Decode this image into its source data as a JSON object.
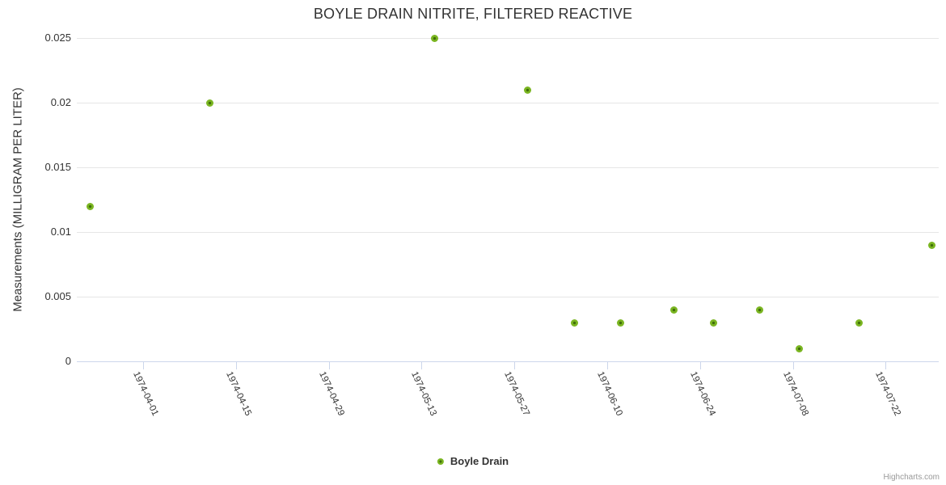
{
  "title": "BOYLE DRAIN NITRITE, FILTERED REACTIVE",
  "credits": "Highcharts.com",
  "legend": {
    "label": "Boyle Drain"
  },
  "colors": {
    "title": "#333333",
    "axis_label": "#333333",
    "y_title": "#333333",
    "legend_text": "#333333",
    "marker_outer": "#7ab521",
    "marker_inner": "#3f6d0a",
    "gridline": "#e6e6e6",
    "axis_line": "#ccd6eb",
    "credits": "#999999"
  },
  "chart_data": {
    "type": "scatter",
    "title": "BOYLE DRAIN NITRITE, FILTERED REACTIVE",
    "xlabel": "",
    "ylabel": "Measurements (MILLIGRAM PER LITER)",
    "ylim": [
      0,
      0.025
    ],
    "yticks": [
      0,
      0.005,
      0.01,
      0.015,
      0.02,
      0.025
    ],
    "ytick_labels": [
      "0",
      "0.005",
      "0.01",
      "0.015",
      "0.02",
      "0.025"
    ],
    "xlim": [
      "1974-03-22",
      "1974-07-30"
    ],
    "xticks": [
      "1974-04-01",
      "1974-04-15",
      "1974-04-29",
      "1974-05-13",
      "1974-05-27",
      "1974-06-10",
      "1974-06-24",
      "1974-07-08",
      "1974-07-22"
    ],
    "x_tick_label_rotation_deg": 65,
    "grid": "horizontal",
    "legend_position": "bottom-center",
    "series": [
      {
        "name": "Boyle Drain",
        "points": [
          {
            "date": "1974-03-24",
            "value": 0.012
          },
          {
            "date": "1974-04-11",
            "value": 0.02
          },
          {
            "date": "1974-05-15",
            "value": 0.025
          },
          {
            "date": "1974-05-29",
            "value": 0.021
          },
          {
            "date": "1974-06-05",
            "value": 0.003
          },
          {
            "date": "1974-06-12",
            "value": 0.003
          },
          {
            "date": "1974-06-20",
            "value": 0.004
          },
          {
            "date": "1974-06-26",
            "value": 0.003
          },
          {
            "date": "1974-07-03",
            "value": 0.004
          },
          {
            "date": "1974-07-09",
            "value": 0.001
          },
          {
            "date": "1974-07-18",
            "value": 0.003
          },
          {
            "date": "1974-07-29",
            "value": 0.009
          }
        ]
      }
    ]
  }
}
